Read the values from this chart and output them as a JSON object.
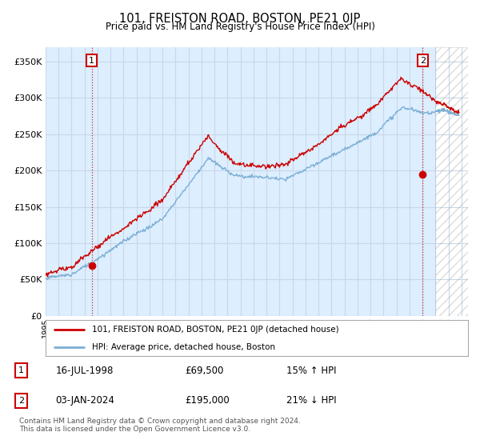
{
  "title": "101, FREISTON ROAD, BOSTON, PE21 0JP",
  "subtitle": "Price paid vs. HM Land Registry's House Price Index (HPI)",
  "hpi_label": "HPI: Average price, detached house, Boston",
  "price_label": "101, FREISTON ROAD, BOSTON, PE21 0JP (detached house)",
  "footer": "Contains HM Land Registry data © Crown copyright and database right 2024.\nThis data is licensed under the Open Government Licence v3.0.",
  "annotation1": {
    "num": "1",
    "date": "16-JUL-1998",
    "price": "£69,500",
    "hpi": "15% ↑ HPI",
    "x_year": 1998.54
  },
  "annotation2": {
    "num": "2",
    "date": "03-JAN-2024",
    "price": "£195,000",
    "hpi": "21% ↓ HPI",
    "x_year": 2024.01
  },
  "ylim": [
    0,
    370000
  ],
  "xlim_start": 1995.0,
  "xlim_end": 2027.5,
  "price_color": "#cc0000",
  "hpi_color": "#7bafd4",
  "annotation_dot_color": "#cc0000",
  "grid_color": "#c8d8e8",
  "chart_bg": "#ddeeff",
  "background_color": "#ffffff",
  "sale1_value": 69500,
  "sale2_value": 195000,
  "hatch_start": 2025.0
}
